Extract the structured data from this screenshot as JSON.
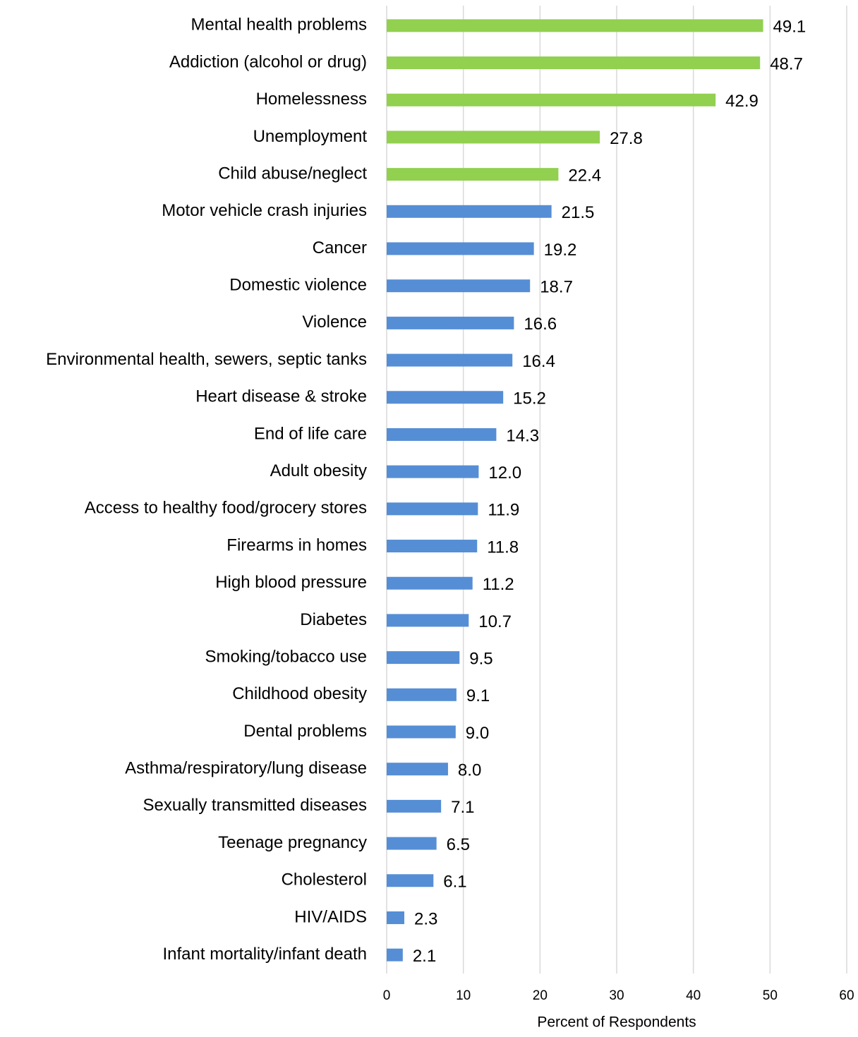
{
  "chart_data": {
    "type": "barh",
    "categories": [
      "Mental health problems",
      "Addiction (alcohol or drug)",
      "Homelessness",
      "Unemployment",
      "Child abuse/neglect",
      "Motor vehicle crash injuries",
      "Cancer",
      "Domestic violence",
      "Violence",
      "Environmental health, sewers, septic tanks",
      "Heart disease & stroke",
      "End of life care",
      "Adult obesity",
      "Access to healthy food/grocery stores",
      "Firearms in homes",
      "High blood pressure",
      "Diabetes",
      "Smoking/tobacco use",
      "Childhood obesity",
      "Dental problems",
      "Asthma/respiratory/lung disease",
      "Sexually transmitted diseases",
      "Teenage pregnancy",
      "Cholesterol",
      "HIV/AIDS",
      "Infant mortality/infant death"
    ],
    "values": [
      49.1,
      48.7,
      42.9,
      27.8,
      22.4,
      21.5,
      19.2,
      18.7,
      16.6,
      16.4,
      15.2,
      14.3,
      12.0,
      11.9,
      11.8,
      11.2,
      10.7,
      9.5,
      9.1,
      9.0,
      8.0,
      7.1,
      6.5,
      6.1,
      2.3,
      2.1
    ],
    "value_labels": [
      "49.1",
      "48.7",
      "42.9",
      "27.8",
      "22.4",
      "21.5",
      "19.2",
      "18.7",
      "16.6",
      "16.4",
      "15.2",
      "14.3",
      "12.0",
      "11.9",
      "11.8",
      "11.2",
      "10.7",
      "9.5",
      "9.1",
      "9.0",
      "8.0",
      "7.1",
      "6.5",
      "6.1",
      "2.3",
      "2.1"
    ],
    "colors": [
      "#92d050",
      "#92d050",
      "#92d050",
      "#92d050",
      "#92d050",
      "#558ed5",
      "#558ed5",
      "#558ed5",
      "#558ed5",
      "#558ed5",
      "#558ed5",
      "#558ed5",
      "#558ed5",
      "#558ed5",
      "#558ed5",
      "#558ed5",
      "#558ed5",
      "#558ed5",
      "#558ed5",
      "#558ed5",
      "#558ed5",
      "#558ed5",
      "#558ed5",
      "#558ed5",
      "#558ed5",
      "#558ed5"
    ],
    "xlabel": "Percent of Respondents",
    "xlim": [
      0,
      60
    ],
    "xticks": [
      0,
      10,
      20,
      30,
      40,
      50,
      60
    ],
    "grid": true
  }
}
